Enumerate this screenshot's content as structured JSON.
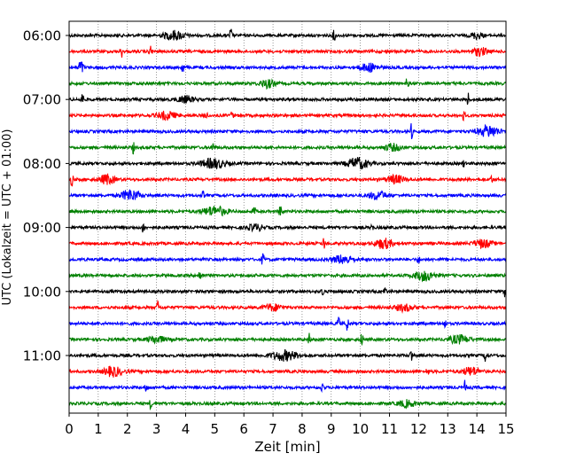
{
  "chart_data": {
    "type": "line",
    "title": "",
    "xlabel": "Zeit  [min]",
    "ylabel": "UTC (Lokalzeit = UTC + 01:00)",
    "xlim": [
      0,
      15
    ],
    "x_ticks": [
      "0",
      "1",
      "2",
      "3",
      "4",
      "5",
      "6",
      "7",
      "8",
      "9",
      "10",
      "11",
      "12",
      "13",
      "14",
      "15"
    ],
    "y_ticks": [
      "06:00",
      "07:00",
      "08:00",
      "09:00",
      "10:00",
      "11:00"
    ],
    "grid": "vertical dotted",
    "row_colors": [
      "#000000",
      "#ff0000",
      "#0000ff",
      "#008000"
    ],
    "rows": [
      {
        "time": "06:00",
        "color": "#000000",
        "events": [
          {
            "x": 3.6,
            "amp": 0.55,
            "width": 0.35
          },
          {
            "x": 5.55,
            "amp": 1.0,
            "width": 0.04
          },
          {
            "x": 9.1,
            "amp": 0.9,
            "width": 0.04
          },
          {
            "x": 14.0,
            "amp": 0.4,
            "width": 0.2
          }
        ]
      },
      {
        "time": "06:15",
        "color": "#ff0000",
        "events": [
          {
            "x": 1.8,
            "amp": 0.7,
            "width": 0.04
          },
          {
            "x": 2.8,
            "amp": 0.6,
            "width": 0.05
          },
          {
            "x": 14.1,
            "amp": 0.5,
            "width": 0.25
          }
        ]
      },
      {
        "time": "06:30",
        "color": "#0000ff",
        "events": [
          {
            "x": 0.4,
            "amp": 0.9,
            "width": 0.08
          },
          {
            "x": 3.9,
            "amp": 0.6,
            "width": 0.05
          },
          {
            "x": 10.3,
            "amp": 0.5,
            "width": 0.3
          }
        ]
      },
      {
        "time": "06:45",
        "color": "#008000",
        "events": [
          {
            "x": 6.8,
            "amp": 0.5,
            "width": 0.25
          },
          {
            "x": 11.6,
            "amp": 0.6,
            "width": 0.05
          }
        ]
      },
      {
        "time": "07:00",
        "color": "#000000",
        "events": [
          {
            "x": 0.45,
            "amp": 1.0,
            "width": 0.04
          },
          {
            "x": 4.0,
            "amp": 0.4,
            "width": 0.3
          },
          {
            "x": 13.7,
            "amp": 0.8,
            "width": 0.04
          }
        ]
      },
      {
        "time": "07:15",
        "color": "#ff0000",
        "events": [
          {
            "x": 3.35,
            "amp": 0.5,
            "width": 0.3
          },
          {
            "x": 4.7,
            "amp": 0.7,
            "width": 0.04
          },
          {
            "x": 5.6,
            "amp": 0.6,
            "width": 0.04
          },
          {
            "x": 13.55,
            "amp": 0.7,
            "width": 0.04
          }
        ]
      },
      {
        "time": "07:30",
        "color": "#0000ff",
        "events": [
          {
            "x": 11.75,
            "amp": 1.0,
            "width": 0.04
          },
          {
            "x": 14.4,
            "amp": 0.7,
            "width": 0.35
          }
        ]
      },
      {
        "time": "07:45",
        "color": "#008000",
        "events": [
          {
            "x": 2.2,
            "amp": 0.7,
            "width": 0.04
          },
          {
            "x": 4.95,
            "amp": 0.6,
            "width": 0.05
          },
          {
            "x": 11.1,
            "amp": 0.4,
            "width": 0.3
          }
        ]
      },
      {
        "time": "08:00",
        "color": "#000000",
        "events": [
          {
            "x": 4.95,
            "amp": 0.6,
            "width": 0.4
          },
          {
            "x": 9.9,
            "amp": 0.7,
            "width": 0.35
          },
          {
            "x": 13.55,
            "amp": 0.5,
            "width": 0.04
          }
        ]
      },
      {
        "time": "08:15",
        "color": "#ff0000",
        "events": [
          {
            "x": 0.1,
            "amp": 0.8,
            "width": 0.05
          },
          {
            "x": 1.3,
            "amp": 0.6,
            "width": 0.25
          },
          {
            "x": 11.2,
            "amp": 0.5,
            "width": 0.3
          },
          {
            "x": 14.5,
            "amp": 0.5,
            "width": 0.04
          }
        ]
      },
      {
        "time": "08:30",
        "color": "#0000ff",
        "events": [
          {
            "x": 2.1,
            "amp": 0.7,
            "width": 0.3
          },
          {
            "x": 4.6,
            "amp": 0.5,
            "width": 0.04
          },
          {
            "x": 10.6,
            "amp": 0.5,
            "width": 0.3
          }
        ]
      },
      {
        "time": "08:45",
        "color": "#008000",
        "events": [
          {
            "x": 5.0,
            "amp": 0.6,
            "width": 0.4
          },
          {
            "x": 6.35,
            "amp": 0.9,
            "width": 0.04
          },
          {
            "x": 7.25,
            "amp": 1.0,
            "width": 0.05
          }
        ]
      },
      {
        "time": "09:00",
        "color": "#000000",
        "events": [
          {
            "x": 2.55,
            "amp": 0.8,
            "width": 0.04
          },
          {
            "x": 6.4,
            "amp": 0.4,
            "width": 0.25
          },
          {
            "x": 10.4,
            "amp": 0.5,
            "width": 0.04
          }
        ]
      },
      {
        "time": "09:15",
        "color": "#ff0000",
        "events": [
          {
            "x": 8.75,
            "amp": 0.8,
            "width": 0.04
          },
          {
            "x": 10.8,
            "amp": 0.6,
            "width": 0.3
          },
          {
            "x": 14.2,
            "amp": 0.5,
            "width": 0.3
          }
        ]
      },
      {
        "time": "09:30",
        "color": "#0000ff",
        "events": [
          {
            "x": 6.65,
            "amp": 0.9,
            "width": 0.04
          },
          {
            "x": 9.4,
            "amp": 0.5,
            "width": 0.35
          },
          {
            "x": 12.0,
            "amp": 0.5,
            "width": 0.04
          }
        ]
      },
      {
        "time": "09:45",
        "color": "#008000",
        "events": [
          {
            "x": 4.5,
            "amp": 0.8,
            "width": 0.05
          },
          {
            "x": 12.2,
            "amp": 0.6,
            "width": 0.35
          }
        ]
      },
      {
        "time": "10:00",
        "color": "#000000",
        "events": [
          {
            "x": 8.7,
            "amp": 0.7,
            "width": 0.04
          },
          {
            "x": 10.85,
            "amp": 0.7,
            "width": 0.04
          },
          {
            "x": 14.95,
            "amp": 0.7,
            "width": 0.04
          }
        ]
      },
      {
        "time": "10:15",
        "color": "#ff0000",
        "events": [
          {
            "x": 3.05,
            "amp": 0.8,
            "width": 0.04
          },
          {
            "x": 7.0,
            "amp": 0.4,
            "width": 0.3
          },
          {
            "x": 11.5,
            "amp": 0.4,
            "width": 0.3
          }
        ]
      },
      {
        "time": "10:30",
        "color": "#0000ff",
        "events": [
          {
            "x": 9.25,
            "amp": 1.0,
            "width": 0.04
          },
          {
            "x": 9.55,
            "amp": 0.9,
            "width": 0.04
          },
          {
            "x": 12.9,
            "amp": 0.6,
            "width": 0.04
          }
        ]
      },
      {
        "time": "10:45",
        "color": "#008000",
        "events": [
          {
            "x": 3.0,
            "amp": 0.4,
            "width": 0.3
          },
          {
            "x": 8.25,
            "amp": 0.8,
            "width": 0.04
          },
          {
            "x": 10.05,
            "amp": 0.9,
            "width": 0.04
          },
          {
            "x": 13.4,
            "amp": 0.5,
            "width": 0.35
          }
        ]
      },
      {
        "time": "11:00",
        "color": "#000000",
        "events": [
          {
            "x": 7.4,
            "amp": 0.6,
            "width": 0.45
          },
          {
            "x": 11.75,
            "amp": 0.9,
            "width": 0.04
          },
          {
            "x": 14.3,
            "amp": 0.9,
            "width": 0.04
          }
        ]
      },
      {
        "time": "11:15",
        "color": "#ff0000",
        "events": [
          {
            "x": 1.5,
            "amp": 0.6,
            "width": 0.3
          },
          {
            "x": 12.3,
            "amp": 0.6,
            "width": 0.04
          },
          {
            "x": 13.8,
            "amp": 0.5,
            "width": 0.3
          }
        ]
      },
      {
        "time": "11:30",
        "color": "#0000ff",
        "events": [
          {
            "x": 2.65,
            "amp": 0.6,
            "width": 0.04
          },
          {
            "x": 8.7,
            "amp": 0.8,
            "width": 0.04
          },
          {
            "x": 13.6,
            "amp": 0.9,
            "width": 0.04
          }
        ]
      },
      {
        "time": "11:45",
        "color": "#008000",
        "events": [
          {
            "x": 2.8,
            "amp": 0.6,
            "width": 0.04
          },
          {
            "x": 11.6,
            "amp": 0.4,
            "width": 0.3
          }
        ]
      }
    ]
  }
}
